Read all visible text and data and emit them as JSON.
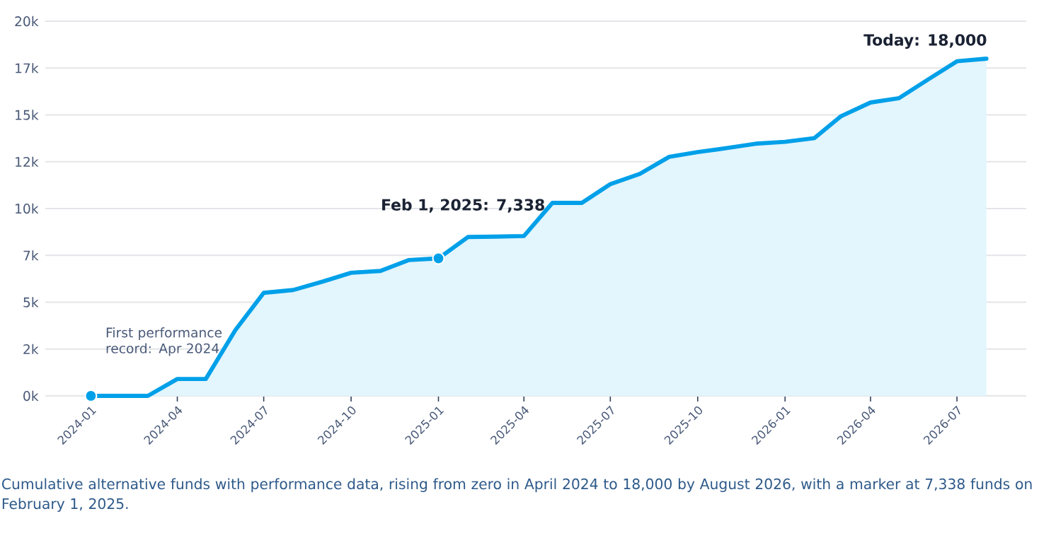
{
  "chart_data": {
    "type": "area",
    "xlim": [
      "2023-11-14",
      "2026-09-12"
    ],
    "xticks": [
      "2024-01",
      "2024-04",
      "2024-07",
      "2024-10",
      "2025-01",
      "2025-04",
      "2025-07",
      "2025-10",
      "2026-01",
      "2026-04",
      "2026-07"
    ],
    "ylim": [
      0,
      20000
    ],
    "yticks": [
      {
        "value": 0,
        "label": "0k"
      },
      {
        "value": 2500,
        "label": "2k"
      },
      {
        "value": 5000,
        "label": "5k"
      },
      {
        "value": 7500,
        "label": "7k"
      },
      {
        "value": 10000,
        "label": "10k"
      },
      {
        "value": 12500,
        "label": "12k"
      },
      {
        "value": 15000,
        "label": "15k"
      },
      {
        "value": 17500,
        "label": "17k"
      },
      {
        "value": 20000,
        "label": "20k"
      }
    ],
    "grid": "y",
    "series": [
      {
        "color": "#00a0e9",
        "x": [
          "2024-01",
          "2024-02",
          "2024-03",
          "2024-04",
          "2024-05",
          "2024-06",
          "2024-07",
          "2024-08",
          "2024-09",
          "2024-10",
          "2024-11",
          "2024-12",
          "2025-01",
          "2025-02",
          "2025-03",
          "2025-04",
          "2025-05",
          "2025-06",
          "2025-07",
          "2025-08",
          "2025-09",
          "2025-10",
          "2025-11",
          "2025-12",
          "2026-01",
          "2026-02",
          "2026-03",
          "2026-04",
          "2026-05",
          "2026-06",
          "2026-07",
          "2026-08"
        ],
        "values": [
          0,
          0,
          0,
          900,
          900,
          3500,
          5500,
          5650,
          6100,
          6570,
          6670,
          7250,
          7338,
          8480,
          8500,
          8530,
          10300,
          10300,
          11300,
          11850,
          12760,
          13010,
          13230,
          13460,
          13560,
          13760,
          14930,
          15660,
          15890,
          16900,
          17860,
          18000
        ]
      },
      {
        "type": "scatter",
        "color": "#00a0e9",
        "marker": "circle",
        "x": [
          "2024-01",
          "2025-01"
        ],
        "values": [
          0,
          7338
        ]
      }
    ],
    "annotations": [
      "First performance record: Apr 2024",
      {
        "text": "Feb 1, 2025: 7,338",
        "x": "2025-01",
        "y": 7338
      },
      {
        "text": "Today: 18,000",
        "x": "2026-08",
        "y": 18000
      },
      "Cumulative alternative funds with performance data, rising from zero in April 2024 to 18,000 by August 2026, with a marker at 7,338 funds on February 1, 2025."
    ]
  }
}
